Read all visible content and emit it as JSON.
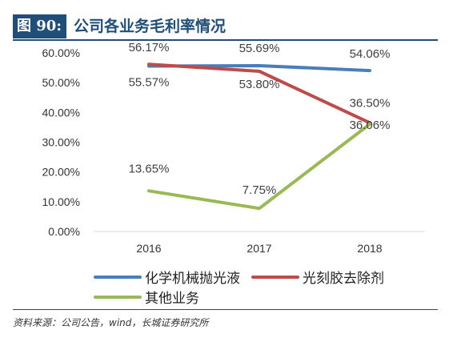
{
  "header": {
    "figure_label": "图 90:",
    "title": "公司各业务毛利率情况"
  },
  "source": "资料来源：公司公告，wind，长城证券研究所",
  "chart_data": {
    "type": "line",
    "title": "",
    "xlabel": "",
    "ylabel": "",
    "categories": [
      "2016",
      "2017",
      "2018"
    ],
    "ylim": [
      0,
      60
    ],
    "yticks": [
      0,
      10,
      20,
      30,
      40,
      50,
      60
    ],
    "ytick_labels": [
      "0.00%",
      "10.00%",
      "20.00%",
      "30.00%",
      "40.00%",
      "50.00%",
      "60.00%"
    ],
    "grid": false,
    "legend_position": "bottom",
    "series": [
      {
        "name": "化学机械抛光液",
        "color": "#4a7ebb",
        "values": [
          55.57,
          55.69,
          54.06
        ],
        "labels": [
          "55.57%",
          "55.69%",
          "54.06%"
        ]
      },
      {
        "name": "光刻胶去除剂",
        "color": "#be4b48",
        "values": [
          56.17,
          53.8,
          36.5
        ],
        "labels": [
          "56.17%",
          "53.80%",
          "36.50%"
        ]
      },
      {
        "name": "其他业务",
        "color": "#98b954",
        "values": [
          13.65,
          7.75,
          36.06
        ],
        "labels": [
          "13.65%",
          "7.75%",
          "36.06%"
        ]
      }
    ]
  }
}
